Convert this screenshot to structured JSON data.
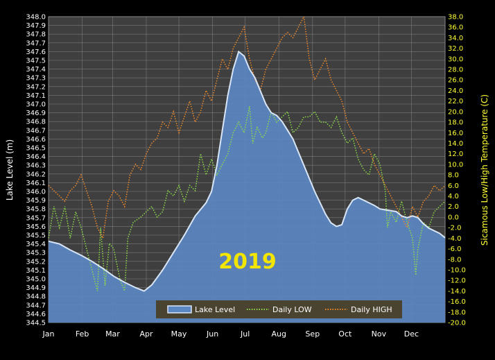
{
  "chart_data": {
    "type": "line",
    "annotation": "2019",
    "ylabel_left": "Lake Level (m)",
    "ylabel_right": "Sicamous  Low/High  Temperature (C)",
    "months": [
      "Jan",
      "Feb",
      "Mar",
      "Apr",
      "May",
      "Jun",
      "Jul",
      "Aug",
      "Sep",
      "Oct",
      "Nov",
      "Dec"
    ],
    "yleft_ticks": [
      "348.0",
      "347.9",
      "347.8",
      "347.7",
      "347.6",
      "347.5",
      "347.4",
      "347.3",
      "347.2",
      "347.1",
      "347.0",
      "346.9",
      "346.8",
      "346.7",
      "346.6",
      "346.5",
      "346.4",
      "346.3",
      "346.2",
      "346.1",
      "346.0",
      "345.9",
      "345.8",
      "345.7",
      "345.6",
      "345.5",
      "345.4",
      "345.3",
      "345.2",
      "345.1",
      "345.0",
      "344.9",
      "344.8",
      "344.7",
      "344.6",
      "344.5"
    ],
    "yright_ticks": [
      "38.0",
      "36.0",
      "34.0",
      "32.0",
      "30.0",
      "28.0",
      "26.0",
      "24.0",
      "22.0",
      "20.0",
      "18.0",
      "16.0",
      "14.0",
      "12.0",
      "10.0",
      "8.0",
      "6.0",
      "4.0",
      "2.0",
      "0.0",
      "-2.0",
      "-4.0",
      "-6.0",
      "-8.0",
      "-10.0",
      "-12.0",
      "-14.0",
      "-16.0",
      "-18.0",
      "-20.0"
    ],
    "yleft_range": [
      344.5,
      348.0
    ],
    "yright_range": [
      -20.0,
      38.0
    ],
    "xlim_day": [
      0,
      365
    ],
    "grid": true,
    "legend_position": "bottom-center",
    "colors": {
      "plot_bg": "#3f3f3f",
      "grid": "#7a7a7a",
      "area_fill": "#5b87c2",
      "lake_line": "#d9e6f7",
      "low": "#8fdc4a",
      "high": "#f08a2a",
      "legend_bg": "#4a4330",
      "annotation": "#f2e600",
      "right_axis_text": "#ffff33"
    },
    "series": [
      {
        "name": "Lake Level",
        "axis": "left",
        "style": "area",
        "points": [
          [
            0,
            345.43
          ],
          [
            10,
            345.4
          ],
          [
            20,
            345.33
          ],
          [
            30,
            345.27
          ],
          [
            40,
            345.2
          ],
          [
            50,
            345.12
          ],
          [
            60,
            345.03
          ],
          [
            70,
            344.96
          ],
          [
            80,
            344.9
          ],
          [
            88,
            344.86
          ],
          [
            95,
            344.93
          ],
          [
            105,
            345.1
          ],
          [
            115,
            345.3
          ],
          [
            125,
            345.5
          ],
          [
            135,
            345.72
          ],
          [
            145,
            345.87
          ],
          [
            150,
            346.0
          ],
          [
            155,
            346.3
          ],
          [
            160,
            346.7
          ],
          [
            165,
            347.1
          ],
          [
            170,
            347.4
          ],
          [
            175,
            347.6
          ],
          [
            180,
            347.55
          ],
          [
            185,
            347.4
          ],
          [
            190,
            347.3
          ],
          [
            195,
            347.15
          ],
          [
            200,
            347.0
          ],
          [
            205,
            346.9
          ],
          [
            210,
            346.87
          ],
          [
            215,
            346.8
          ],
          [
            220,
            346.7
          ],
          [
            225,
            346.6
          ],
          [
            230,
            346.45
          ],
          [
            235,
            346.3
          ],
          [
            240,
            346.15
          ],
          [
            245,
            346.0
          ],
          [
            250,
            345.87
          ],
          [
            255,
            345.74
          ],
          [
            260,
            345.64
          ],
          [
            265,
            345.6
          ],
          [
            270,
            345.62
          ],
          [
            275,
            345.8
          ],
          [
            280,
            345.9
          ],
          [
            285,
            345.93
          ],
          [
            290,
            345.9
          ],
          [
            295,
            345.87
          ],
          [
            300,
            345.84
          ],
          [
            305,
            345.8
          ],
          [
            310,
            345.79
          ],
          [
            315,
            345.78
          ],
          [
            320,
            345.77
          ],
          [
            325,
            345.72
          ],
          [
            330,
            345.7
          ],
          [
            335,
            345.72
          ],
          [
            340,
            345.7
          ],
          [
            345,
            345.63
          ],
          [
            350,
            345.58
          ],
          [
            355,
            345.55
          ],
          [
            360,
            345.52
          ],
          [
            365,
            345.47
          ]
        ]
      },
      {
        "name": "Daily LOW",
        "axis": "right",
        "style": "dotted",
        "points": [
          [
            0,
            -4
          ],
          [
            5,
            2
          ],
          [
            10,
            -2
          ],
          [
            15,
            2
          ],
          [
            20,
            -4
          ],
          [
            25,
            1
          ],
          [
            30,
            -2
          ],
          [
            35,
            -6
          ],
          [
            40,
            -10
          ],
          [
            45,
            -14
          ],
          [
            48,
            -2
          ],
          [
            52,
            -13
          ],
          [
            56,
            -5
          ],
          [
            60,
            -6
          ],
          [
            63,
            -9
          ],
          [
            66,
            -12
          ],
          [
            70,
            -14
          ],
          [
            73,
            -4
          ],
          [
            78,
            -1
          ],
          [
            85,
            0
          ],
          [
            90,
            1
          ],
          [
            95,
            2
          ],
          [
            100,
            0
          ],
          [
            105,
            1
          ],
          [
            110,
            5
          ],
          [
            115,
            4
          ],
          [
            120,
            6
          ],
          [
            125,
            3
          ],
          [
            130,
            6
          ],
          [
            135,
            5
          ],
          [
            140,
            12
          ],
          [
            145,
            8
          ],
          [
            150,
            11
          ],
          [
            155,
            8
          ],
          [
            160,
            10
          ],
          [
            165,
            12
          ],
          [
            170,
            16
          ],
          [
            175,
            18
          ],
          [
            180,
            16
          ],
          [
            185,
            21
          ],
          [
            188,
            14
          ],
          [
            192,
            17
          ],
          [
            197,
            15
          ],
          [
            200,
            16
          ],
          [
            205,
            20
          ],
          [
            210,
            18
          ],
          [
            215,
            19
          ],
          [
            220,
            20
          ],
          [
            225,
            16
          ],
          [
            230,
            17
          ],
          [
            235,
            19
          ],
          [
            240,
            19
          ],
          [
            245,
            20
          ],
          [
            250,
            18
          ],
          [
            255,
            18
          ],
          [
            260,
            17
          ],
          [
            265,
            19
          ],
          [
            270,
            16
          ],
          [
            275,
            14
          ],
          [
            280,
            15
          ],
          [
            285,
            11
          ],
          [
            290,
            9
          ],
          [
            295,
            8
          ],
          [
            300,
            12
          ],
          [
            305,
            10
          ],
          [
            310,
            5
          ],
          [
            312,
            -2
          ],
          [
            315,
            1
          ],
          [
            320,
            -1
          ],
          [
            325,
            3
          ],
          [
            330,
            -1
          ],
          [
            335,
            -4
          ],
          [
            338,
            -11
          ],
          [
            340,
            -6
          ],
          [
            345,
            -1
          ],
          [
            350,
            -2
          ],
          [
            355,
            1
          ],
          [
            360,
            2
          ],
          [
            365,
            3
          ]
        ]
      },
      {
        "name": "Daily HIGH",
        "axis": "right",
        "style": "dotted",
        "points": [
          [
            0,
            6
          ],
          [
            5,
            5
          ],
          [
            10,
            4
          ],
          [
            15,
            3
          ],
          [
            20,
            5
          ],
          [
            25,
            6
          ],
          [
            30,
            8
          ],
          [
            35,
            5
          ],
          [
            40,
            2
          ],
          [
            45,
            -2
          ],
          [
            50,
            -4
          ],
          [
            55,
            3
          ],
          [
            60,
            5
          ],
          [
            65,
            4
          ],
          [
            70,
            2
          ],
          [
            75,
            8
          ],
          [
            80,
            10
          ],
          [
            85,
            9
          ],
          [
            90,
            12
          ],
          [
            95,
            14
          ],
          [
            100,
            15
          ],
          [
            105,
            18
          ],
          [
            110,
            17
          ],
          [
            115,
            20
          ],
          [
            120,
            16
          ],
          [
            125,
            19
          ],
          [
            130,
            22
          ],
          [
            135,
            18
          ],
          [
            140,
            20
          ],
          [
            145,
            24
          ],
          [
            150,
            22
          ],
          [
            155,
            26
          ],
          [
            160,
            30
          ],
          [
            165,
            28
          ],
          [
            170,
            32
          ],
          [
            175,
            34
          ],
          [
            180,
            36
          ],
          [
            185,
            30
          ],
          [
            190,
            26
          ],
          [
            195,
            24
          ],
          [
            200,
            28
          ],
          [
            205,
            30
          ],
          [
            210,
            32
          ],
          [
            215,
            34
          ],
          [
            220,
            35
          ],
          [
            225,
            34
          ],
          [
            230,
            36
          ],
          [
            235,
            38
          ],
          [
            240,
            30
          ],
          [
            245,
            26
          ],
          [
            250,
            28
          ],
          [
            255,
            30
          ],
          [
            260,
            26
          ],
          [
            265,
            24
          ],
          [
            270,
            22
          ],
          [
            275,
            18
          ],
          [
            280,
            16
          ],
          [
            285,
            14
          ],
          [
            290,
            12
          ],
          [
            295,
            13
          ],
          [
            300,
            10
          ],
          [
            305,
            8
          ],
          [
            310,
            6
          ],
          [
            315,
            4
          ],
          [
            320,
            2
          ],
          [
            325,
            0
          ],
          [
            330,
            -2
          ],
          [
            335,
            2
          ],
          [
            340,
            0
          ],
          [
            345,
            3
          ],
          [
            350,
            4
          ],
          [
            355,
            6
          ],
          [
            360,
            5
          ],
          [
            365,
            6
          ]
        ]
      }
    ]
  }
}
